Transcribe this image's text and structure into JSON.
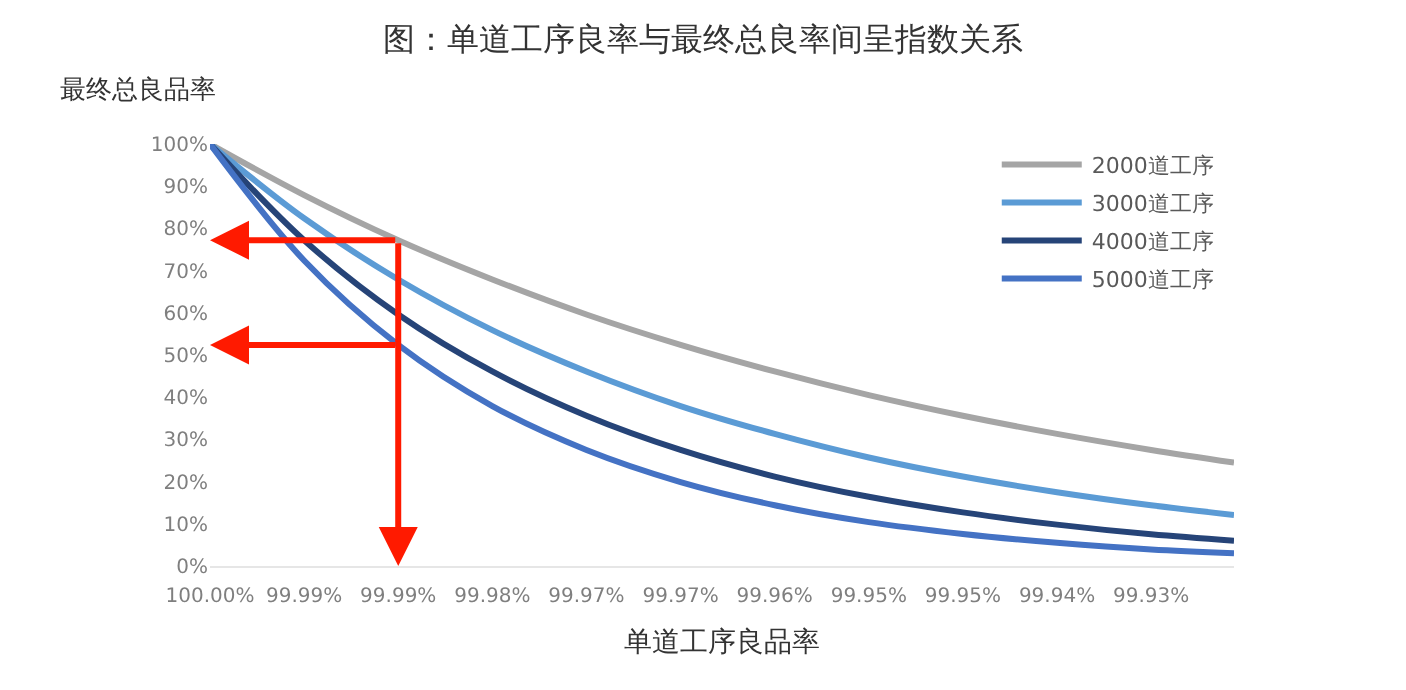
{
  "chart_data": {
    "type": "line",
    "title": "图：单道工序良率与最终总良率间呈指数关系",
    "xlabel": "单道工序良品率",
    "ylabel": "最终总良品率",
    "x": [
      100,
      99.9933,
      99.9866,
      99.9799,
      99.9732,
      99.9665,
      99.9598,
      99.9531,
      99.9464,
      99.9397,
      99.933,
      99.9271
    ],
    "series": [
      {
        "name": "2000道工序",
        "color": "#a5a5a5",
        "values": [
          100,
          87.9,
          77.2,
          67.9,
          59.6,
          52.4,
          46.1,
          40.5,
          35.6,
          31.3,
          27.5,
          24.5
        ]
      },
      {
        "name": "3000道工序",
        "color": "#5b9bd5",
        "values": [
          100,
          82.4,
          67.9,
          55.9,
          46.1,
          37.9,
          31.3,
          25.7,
          21.2,
          17.5,
          14.4,
          12.1
        ]
      },
      {
        "name": "4000道工序",
        "color": "#264478",
        "values": [
          100,
          77.2,
          59.6,
          46.1,
          35.6,
          27.5,
          21.2,
          16.4,
          12.7,
          9.8,
          7.5,
          6.0
        ]
      },
      {
        "name": "5000道工序",
        "color": "#4472c4",
        "values": [
          100,
          72.4,
          52.4,
          37.9,
          27.5,
          19.9,
          14.4,
          10.4,
          7.6,
          5.5,
          3.9,
          3.0
        ]
      }
    ],
    "xlim": [
      100,
      99.9271
    ],
    "xticks": [
      {
        "value": 100,
        "label": "100.00%"
      },
      {
        "value": 99.9933,
        "label": "99.99%"
      },
      {
        "value": 99.9866,
        "label": "99.99%"
      },
      {
        "value": 99.9799,
        "label": "99.98%"
      },
      {
        "value": 99.9732,
        "label": "99.97%"
      },
      {
        "value": 99.9665,
        "label": "99.97%"
      },
      {
        "value": 99.9598,
        "label": "99.96%"
      },
      {
        "value": 99.9531,
        "label": "99.95%"
      },
      {
        "value": 99.9464,
        "label": "99.95%"
      },
      {
        "value": 99.9397,
        "label": "99.94%"
      },
      {
        "value": 99.933,
        "label": "99.93%"
      }
    ],
    "ylim": [
      0,
      100
    ],
    "yticks": [
      {
        "value": 0,
        "label": "0%"
      },
      {
        "value": 10,
        "label": "10%"
      },
      {
        "value": 20,
        "label": "20%"
      },
      {
        "value": 30,
        "label": "30%"
      },
      {
        "value": 40,
        "label": "40%"
      },
      {
        "value": 50,
        "label": "50%"
      },
      {
        "value": 60,
        "label": "60%"
      },
      {
        "value": 70,
        "label": "70%"
      },
      {
        "value": 80,
        "label": "80%"
      },
      {
        "value": 90,
        "label": "90%"
      },
      {
        "value": 100,
        "label": "100%"
      }
    ],
    "legend": "top right",
    "marker": "none",
    "line_style": "solid"
  }
}
